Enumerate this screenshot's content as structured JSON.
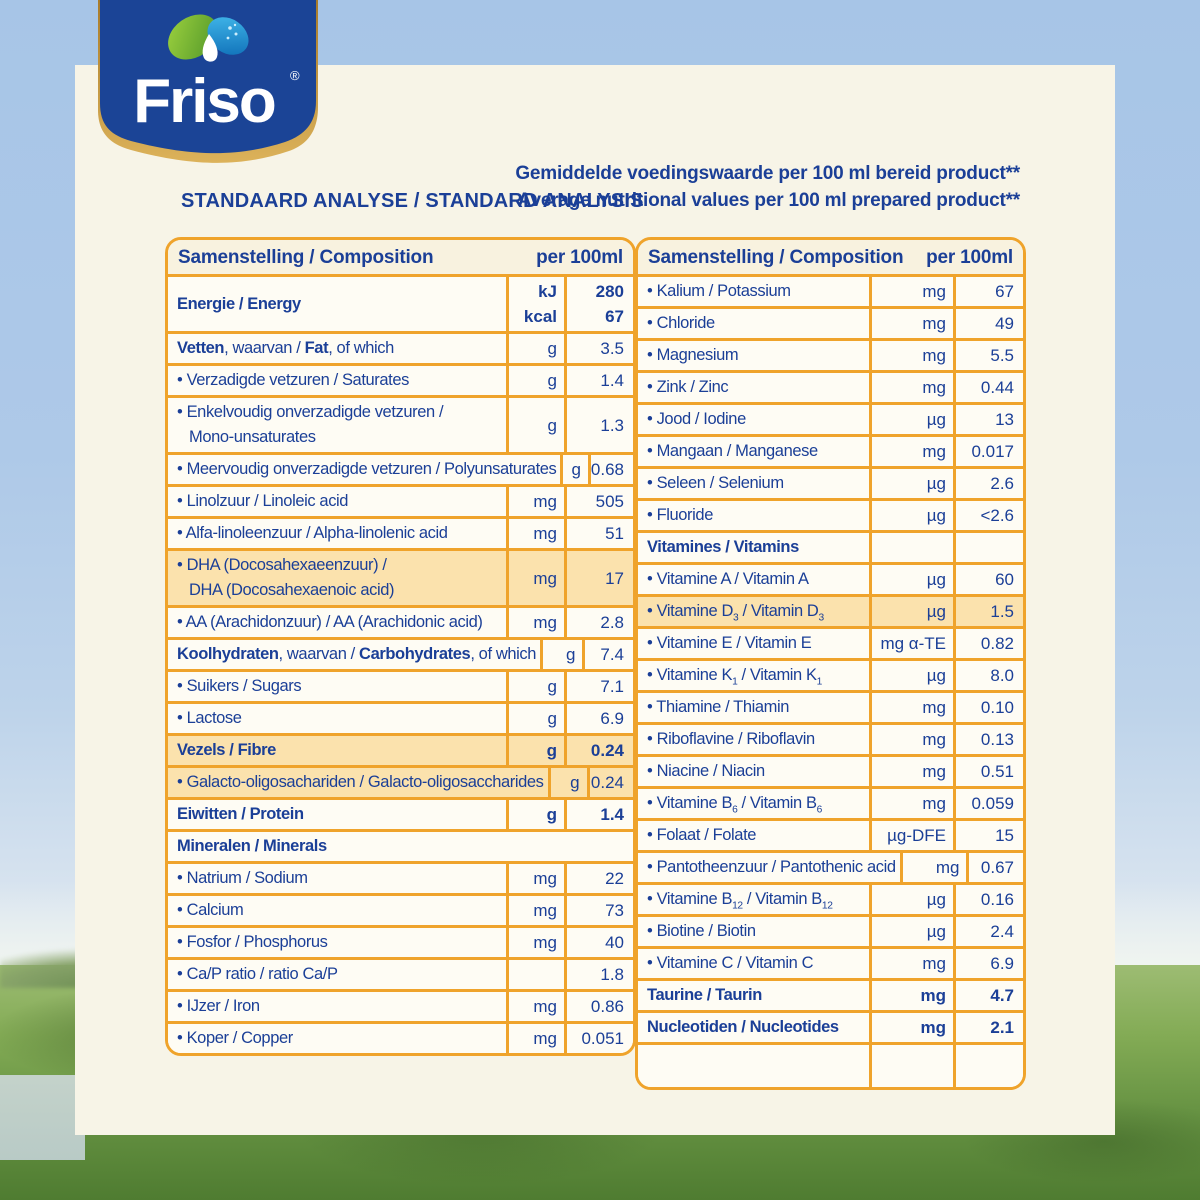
{
  "brand": {
    "name": "Friso",
    "registered": "®"
  },
  "header": {
    "left_title": "STANDAARD ANALYSE / STANDARD ANALYSIS",
    "right_line1": "Gemiddelde voedingswaarde per 100 ml bereid product**",
    "right_line2": "Average nutritional values per 100 ml prepared product**"
  },
  "colors": {
    "table_border": "#EFA32B",
    "text_blue": "#1B3F97",
    "row_highlight": "#FBE2AD",
    "card_cream": "#F7F4E7",
    "logo_blue": "#1B4496",
    "logo_gold": "#C9973C",
    "leaf_green": "#7DBE3A",
    "drop_blue": "#29A8E0"
  },
  "tables": [
    {
      "header": {
        "left": "Samenstelling / Composition",
        "right": "per 100ml"
      },
      "rows": [
        {
          "bold": true,
          "label": [
            {
              "t": "Energie / Energy"
            }
          ],
          "unit": "kJ",
          "value": "280",
          "unit2": "kcal",
          "value2": "67"
        },
        {
          "label": [
            {
              "t": "Vetten",
              "b": true
            },
            {
              "t": ", waarvan / "
            },
            {
              "t": "Fat",
              "b": true
            },
            {
              "t": ", of which"
            }
          ],
          "unit": "g",
          "value": "3.5"
        },
        {
          "bullet": true,
          "label": [
            {
              "t": "Verzadigde vetzuren / Saturates"
            }
          ],
          "unit": "g",
          "value": "1.4"
        },
        {
          "bullet": true,
          "label": [
            {
              "t": "Enkelvoudig onverzadigde vetzuren /"
            }
          ],
          "label2": [
            {
              "t": "Mono-unsaturates"
            }
          ],
          "unit": "g",
          "value": "1.3"
        },
        {
          "bullet": true,
          "label": [
            {
              "t": "Meervoudig onverzadigde vetzuren / Polyunsaturates"
            }
          ],
          "unit": "g",
          "value": "0.68"
        },
        {
          "bullet": true,
          "label": [
            {
              "t": "Linolzuur / Linoleic acid"
            }
          ],
          "unit": "mg",
          "value": "505"
        },
        {
          "bullet": true,
          "label": [
            {
              "t": "Alfa-linoleenzuur / Alpha-linolenic acid"
            }
          ],
          "unit": "mg",
          "value": "51"
        },
        {
          "bullet": true,
          "highlight": true,
          "label": [
            {
              "t": "DHA (Docosahexaeenzuur) /"
            }
          ],
          "label2": [
            {
              "t": "DHA (Docosahexaenoic acid)"
            }
          ],
          "unit": "mg",
          "value": "17"
        },
        {
          "bullet": true,
          "label": [
            {
              "t": "AA (Arachidonzuur) / AA (Arachidonic acid)"
            }
          ],
          "unit": "mg",
          "value": "2.8"
        },
        {
          "label": [
            {
              "t": "Koolhydraten",
              "b": true
            },
            {
              "t": ", waarvan / "
            },
            {
              "t": "Carbohydrates",
              "b": true
            },
            {
              "t": ", of which"
            }
          ],
          "unit": "g",
          "value": "7.4"
        },
        {
          "bullet": true,
          "label": [
            {
              "t": "Suikers / Sugars"
            }
          ],
          "unit": "g",
          "value": "7.1"
        },
        {
          "bullet": true,
          "label": [
            {
              "t": "Lactose"
            }
          ],
          "unit": "g",
          "value": "6.9"
        },
        {
          "bold": true,
          "highlight": true,
          "label": [
            {
              "t": "Vezels / Fibre"
            }
          ],
          "unit": "g",
          "value": "0.24"
        },
        {
          "bullet": true,
          "highlight": true,
          "label": [
            {
              "t": "Galacto-oligosachariden / Galacto-oligosaccharides"
            }
          ],
          "unit": "g",
          "value": "0.24"
        },
        {
          "bold": true,
          "label": [
            {
              "t": "Eiwitten / Protein"
            }
          ],
          "unit": "g",
          "value": "1.4"
        },
        {
          "bold": true,
          "span": true,
          "label": [
            {
              "t": "Mineralen / Minerals"
            }
          ]
        },
        {
          "bullet": true,
          "label": [
            {
              "t": "Natrium / Sodium"
            }
          ],
          "unit": "mg",
          "value": "22"
        },
        {
          "bullet": true,
          "label": [
            {
              "t": "Calcium"
            }
          ],
          "unit": "mg",
          "value": "73"
        },
        {
          "bullet": true,
          "label": [
            {
              "t": "Fosfor / Phosphorus"
            }
          ],
          "unit": "mg",
          "value": "40"
        },
        {
          "bullet": true,
          "label": [
            {
              "t": "Ca/P ratio / ratio Ca/P"
            }
          ],
          "unit": "",
          "value": "1.8"
        },
        {
          "bullet": true,
          "label": [
            {
              "t": "IJzer / Iron"
            }
          ],
          "unit": "mg",
          "value": "0.86"
        },
        {
          "bullet": true,
          "label": [
            {
              "t": "Koper / Copper"
            }
          ],
          "unit": "mg",
          "value": "0.051"
        }
      ]
    },
    {
      "header": {
        "left": "Samenstelling / Composition",
        "right": "per 100ml"
      },
      "rows": [
        {
          "bullet": true,
          "label": [
            {
              "t": "Kalium / Potassium"
            }
          ],
          "unit": "mg",
          "value": "67"
        },
        {
          "bullet": true,
          "label": [
            {
              "t": "Chloride"
            }
          ],
          "unit": "mg",
          "value": "49"
        },
        {
          "bullet": true,
          "label": [
            {
              "t": "Magnesium"
            }
          ],
          "unit": "mg",
          "value": "5.5"
        },
        {
          "bullet": true,
          "label": [
            {
              "t": "Zink / Zinc"
            }
          ],
          "unit": "mg",
          "value": "0.44"
        },
        {
          "bullet": true,
          "label": [
            {
              "t": "Jood / Iodine"
            }
          ],
          "unit": "µg",
          "value": "13"
        },
        {
          "bullet": true,
          "label": [
            {
              "t": "Mangaan / Manganese"
            }
          ],
          "unit": "mg",
          "value": "0.017"
        },
        {
          "bullet": true,
          "label": [
            {
              "t": "Seleen / Selenium"
            }
          ],
          "unit": "µg",
          "value": "2.6"
        },
        {
          "bullet": true,
          "label": [
            {
              "t": "Fluoride"
            }
          ],
          "unit": "µg",
          "value": "<2.6"
        },
        {
          "bold": true,
          "label": [
            {
              "t": "Vitamines / Vitamins"
            }
          ],
          "unit": "",
          "value": ""
        },
        {
          "bullet": true,
          "label": [
            {
              "t": "Vitamine A / Vitamin A"
            }
          ],
          "unit": "µg",
          "value": "60"
        },
        {
          "bullet": true,
          "highlight": true,
          "label": [
            {
              "t": "Vitamine D"
            },
            {
              "t": "3",
              "sub": true
            },
            {
              "t": " / Vitamin D"
            },
            {
              "t": "3",
              "sub": true
            }
          ],
          "unit": "µg",
          "value": "1.5"
        },
        {
          "bullet": true,
          "label": [
            {
              "t": "Vitamine E / Vitamin E"
            }
          ],
          "unit": "mg α-TE",
          "value": "0.82"
        },
        {
          "bullet": true,
          "label": [
            {
              "t": "Vitamine K"
            },
            {
              "t": "1",
              "sub": true
            },
            {
              "t": " / Vitamin K"
            },
            {
              "t": "1",
              "sub": true
            }
          ],
          "unit": "µg",
          "value": "8.0"
        },
        {
          "bullet": true,
          "label": [
            {
              "t": "Thiamine / Thiamin"
            }
          ],
          "unit": "mg",
          "value": "0.10"
        },
        {
          "bullet": true,
          "label": [
            {
              "t": "Riboflavine / Riboflavin"
            }
          ],
          "unit": "mg",
          "value": "0.13"
        },
        {
          "bullet": true,
          "label": [
            {
              "t": "Niacine / Niacin"
            }
          ],
          "unit": "mg",
          "value": "0.51"
        },
        {
          "bullet": true,
          "label": [
            {
              "t": "Vitamine B"
            },
            {
              "t": "6",
              "sub": true
            },
            {
              "t": " / Vitamin B"
            },
            {
              "t": "6",
              "sub": true
            }
          ],
          "unit": "mg",
          "value": "0.059"
        },
        {
          "bullet": true,
          "label": [
            {
              "t": "Folaat / Folate"
            }
          ],
          "unit": "µg-DFE",
          "value": "15"
        },
        {
          "bullet": true,
          "label": [
            {
              "t": "Pantotheenzuur / Pantothenic acid"
            }
          ],
          "unit": "mg",
          "value": "0.67"
        },
        {
          "bullet": true,
          "label": [
            {
              "t": "Vitamine B"
            },
            {
              "t": "12",
              "sub": true
            },
            {
              "t": " / Vitamin B"
            },
            {
              "t": "12",
              "sub": true
            }
          ],
          "unit": "µg",
          "value": "0.16"
        },
        {
          "bullet": true,
          "label": [
            {
              "t": "Biotine / Biotin"
            }
          ],
          "unit": "µg",
          "value": "2.4"
        },
        {
          "bullet": true,
          "label": [
            {
              "t": "Vitamine C / Vitamin C"
            }
          ],
          "unit": "mg",
          "value": "6.9"
        },
        {
          "bold": true,
          "label": [
            {
              "t": "Taurine / Taurin"
            }
          ],
          "unit": "mg",
          "value": "4.7"
        },
        {
          "bold": true,
          "label": [
            {
              "t": "Nucleotiden / Nucleotides"
            }
          ],
          "unit": "mg",
          "value": "2.1"
        },
        {
          "empty": true,
          "label": [],
          "unit": "",
          "value": ""
        }
      ]
    }
  ]
}
